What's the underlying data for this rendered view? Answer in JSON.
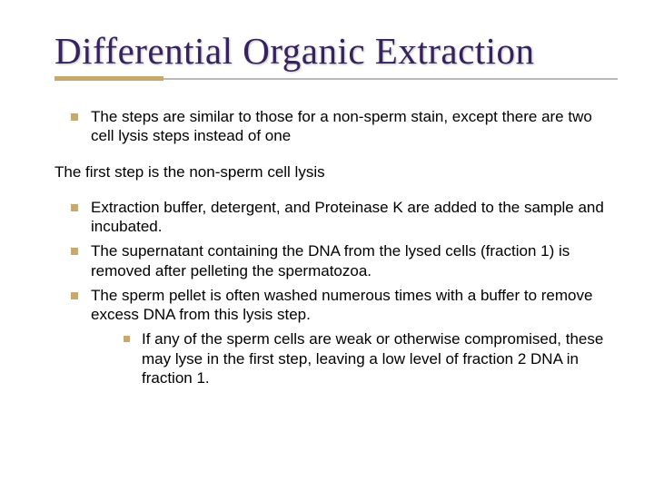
{
  "colors": {
    "title_color": "#36225e",
    "bullet_color": "#c9a96a",
    "underline_grey": "#b8b8b8",
    "underline_gold": "#c9a96a",
    "text_color": "#000000",
    "background": "#ffffff"
  },
  "typography": {
    "title_font": "Times New Roman",
    "title_size_pt": 31,
    "body_font": "Arial",
    "body_size_pt": 13
  },
  "slide": {
    "title": "Differential Organic Extraction",
    "bullets1": [
      "The steps are similar to those for a non-sperm stain, except there are two cell lysis steps instead of one"
    ],
    "intermediate": "The first step is the non-sperm cell lysis",
    "bullets2": [
      {
        "text": "Extraction buffer, detergent, and Proteinase K are added to the sample and incubated.",
        "sub": []
      },
      {
        "text": " The supernatant containing the DNA from the lysed cells (fraction 1) is removed after pelleting the spermatozoa.",
        "sub": []
      },
      {
        "text": "The sperm pellet is often washed numerous times with a buffer to remove excess DNA from this lysis step.",
        "sub": [
          " If any of the sperm cells are weak or otherwise compromised, these may lyse in the first step, leaving a low level of fraction 2 DNA in fraction 1."
        ]
      }
    ]
  }
}
